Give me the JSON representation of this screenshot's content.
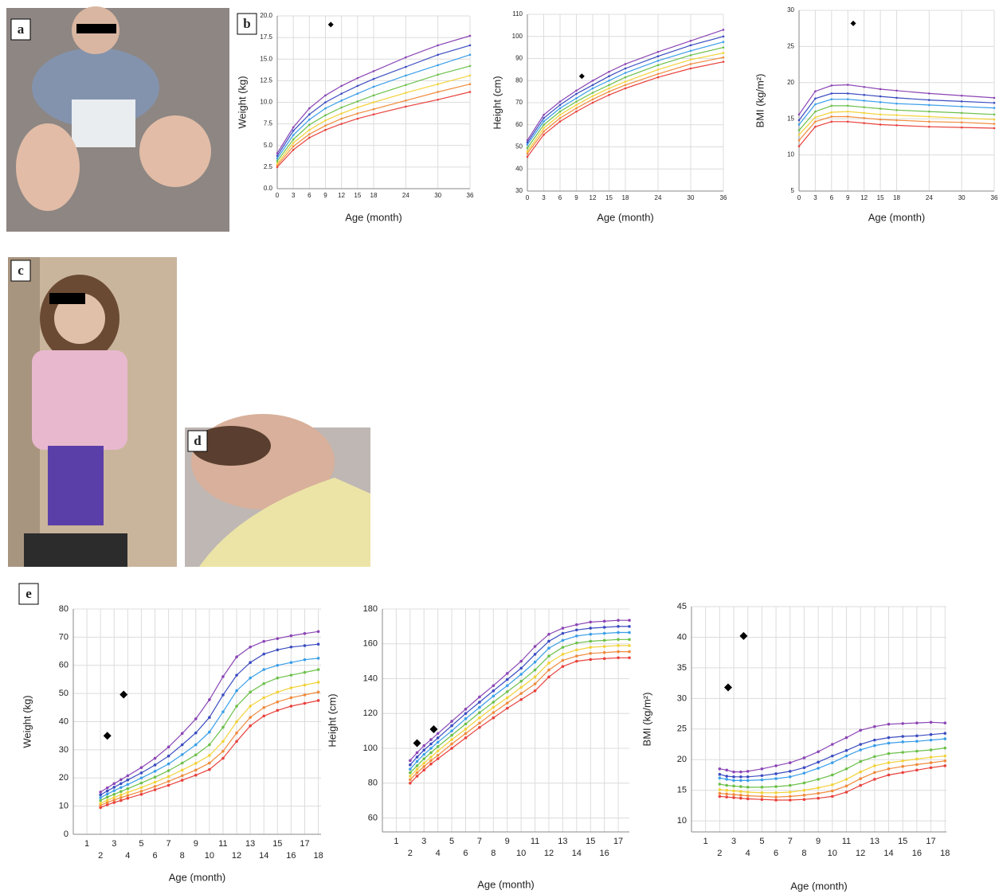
{
  "panel_labels": [
    "a",
    "b",
    "c",
    "d",
    "e"
  ],
  "chart_data": [
    {
      "type": "line",
      "y_label": "Weight (kg)",
      "x_label": "Age (month)",
      "grid": true,
      "x": [
        0,
        3,
        6,
        9,
        12,
        15,
        18,
        24,
        30,
        36
      ],
      "xlim": [
        0,
        36
      ],
      "xticks": [
        0,
        3,
        6,
        9,
        12,
        15,
        18,
        24,
        30,
        36
      ],
      "ylim": [
        0,
        20
      ],
      "yticks": [
        {
          "value": 0,
          "label": "0.0"
        },
        2.5,
        {
          "value": 5,
          "label": "5.0"
        },
        7.5,
        {
          "value": 10,
          "label": "10.0"
        },
        12.5,
        {
          "value": 15,
          "label": "15.0"
        },
        17.5,
        {
          "value": 20,
          "label": "20.0"
        }
      ],
      "series": [
        {
          "color": "#e8413c",
          "values": [
            2.5,
            4.5,
            5.9,
            6.8,
            7.5,
            8.1,
            8.6,
            9.5,
            10.3,
            11.2
          ]
        },
        {
          "color": "#f08a3c",
          "values": [
            2.7,
            4.9,
            6.3,
            7.3,
            8.1,
            8.7,
            9.2,
            10.2,
            11.2,
            12.1
          ]
        },
        {
          "color": "#f2d23a",
          "values": [
            2.9,
            5.3,
            6.8,
            7.9,
            8.7,
            9.4,
            10.0,
            11.1,
            12.1,
            13.1
          ]
        },
        {
          "color": "#6cc04a",
          "values": [
            3.2,
            5.7,
            7.4,
            8.5,
            9.4,
            10.1,
            10.8,
            12.0,
            13.2,
            14.2
          ]
        },
        {
          "color": "#3a9ee8",
          "values": [
            3.5,
            6.2,
            8.0,
            9.3,
            10.2,
            11.0,
            11.8,
            13.1,
            14.3,
            15.5
          ]
        },
        {
          "color": "#3b4cc0",
          "values": [
            3.8,
            6.7,
            8.6,
            10.0,
            11.0,
            11.9,
            12.7,
            14.1,
            15.5,
            16.6
          ]
        },
        {
          "color": "#8b45b5",
          "values": [
            4.1,
            7.1,
            9.3,
            10.8,
            11.9,
            12.8,
            13.6,
            15.2,
            16.6,
            17.7
          ]
        }
      ],
      "points": {
        "color": "#000000",
        "x": [
          10
        ],
        "values": [
          19
        ]
      }
    },
    {
      "type": "line",
      "y_label": "Height (cm)",
      "x_label": "Age (month)",
      "grid": true,
      "x": [
        0,
        3,
        6,
        9,
        12,
        15,
        18,
        24,
        30,
        36
      ],
      "xlim": [
        0,
        36
      ],
      "xticks": [
        0,
        3,
        6,
        9,
        12,
        15,
        18,
        24,
        30,
        36
      ],
      "ylim": [
        30,
        110
      ],
      "yticks": [
        30,
        40,
        50,
        60,
        70,
        80,
        90,
        100,
        110
      ],
      "series": [
        {
          "color": "#e8413c",
          "values": [
            45.5,
            55.5,
            61.5,
            66,
            70,
            73.5,
            76.5,
            81.5,
            85.5,
            88.5
          ]
        },
        {
          "color": "#f08a3c",
          "values": [
            47,
            57,
            63,
            67.5,
            71.5,
            75,
            78,
            83,
            87.5,
            90.5
          ]
        },
        {
          "color": "#f2d23a",
          "values": [
            48,
            58.5,
            64.5,
            69,
            73,
            76.5,
            79.5,
            85,
            89.5,
            92.5
          ]
        },
        {
          "color": "#6cc04a",
          "values": [
            49.5,
            60,
            66,
            70.5,
            74.5,
            78,
            81.5,
            87,
            91.5,
            95
          ]
        },
        {
          "color": "#3a9ee8",
          "values": [
            51,
            61.5,
            67.5,
            72,
            76.5,
            80,
            83.5,
            89,
            93.5,
            97.5
          ]
        },
        {
          "color": "#3b4cc0",
          "values": [
            52,
            63,
            69,
            74,
            78,
            82,
            85.5,
            91,
            96,
            100
          ]
        },
        {
          "color": "#8b45b5",
          "values": [
            53,
            64.5,
            70.5,
            75.5,
            80,
            84,
            87.5,
            93,
            98,
            103
          ]
        }
      ],
      "points": {
        "color": "#000000",
        "x": [
          10
        ],
        "values": [
          82
        ]
      }
    },
    {
      "type": "line",
      "y_label": "BMI (kg/m²)",
      "x_label": "Age (month)",
      "grid": true,
      "x": [
        0,
        3,
        6,
        9,
        12,
        15,
        18,
        24,
        30,
        36
      ],
      "xlim": [
        0,
        36
      ],
      "xticks": [
        0,
        3,
        6,
        9,
        12,
        15,
        18,
        24,
        30,
        36
      ],
      "ylim": [
        5,
        30
      ],
      "yticks": [
        5,
        10,
        15,
        20,
        25,
        30
      ],
      "series": [
        {
          "color": "#e8413c",
          "values": [
            11.2,
            13.9,
            14.6,
            14.6,
            14.4,
            14.2,
            14.1,
            13.9,
            13.8,
            13.7
          ]
        },
        {
          "color": "#f08a3c",
          "values": [
            12,
            14.6,
            15.3,
            15.3,
            15.1,
            14.9,
            14.8,
            14.6,
            14.5,
            14.3
          ]
        },
        {
          "color": "#f2d23a",
          "values": [
            12.8,
            15.2,
            15.9,
            16,
            15.8,
            15.6,
            15.5,
            15.3,
            15.1,
            14.9
          ]
        },
        {
          "color": "#6cc04a",
          "values": [
            13.4,
            16.0,
            16.8,
            16.8,
            16.6,
            16.4,
            16.2,
            16.0,
            15.8,
            15.6
          ]
        },
        {
          "color": "#3a9ee8",
          "values": [
            14.2,
            17.0,
            17.7,
            17.7,
            17.5,
            17.3,
            17.1,
            16.9,
            16.7,
            16.5
          ]
        },
        {
          "color": "#3b4cc0",
          "values": [
            14.8,
            17.8,
            18.5,
            18.5,
            18.3,
            18.1,
            17.9,
            17.6,
            17.4,
            17.2
          ]
        },
        {
          "color": "#8b45b5",
          "values": [
            15.6,
            18.8,
            19.6,
            19.7,
            19.4,
            19.1,
            18.9,
            18.5,
            18.2,
            17.9
          ]
        }
      ],
      "points": {
        "color": "#000000",
        "x": [
          10
        ],
        "values": [
          28.2
        ]
      }
    },
    {
      "type": "line",
      "y_label": "Weight (kg)",
      "x_label": "Age (month)",
      "grid": true,
      "x": [
        2,
        2.5,
        3,
        3.5,
        4,
        5,
        6,
        7,
        8,
        9,
        10,
        11,
        12,
        13,
        14,
        15,
        16,
        17,
        18
      ],
      "xlim": [
        0,
        18.2
      ],
      "xticks": [
        1,
        2,
        3,
        4,
        5,
        6,
        7,
        8,
        9,
        10,
        11,
        12,
        13,
        14,
        15,
        16,
        17,
        18
      ],
      "ylim": [
        0,
        80
      ],
      "yticks": [
        0,
        10,
        20,
        30,
        40,
        50,
        60,
        70,
        80
      ],
      "series": [
        {
          "color": "#e8413c",
          "values": [
            9.5,
            10.5,
            11.3,
            12,
            12.8,
            14.2,
            15.8,
            17.4,
            19.2,
            21,
            23,
            27,
            33,
            38.5,
            42,
            44,
            45.5,
            46.5,
            47.5
          ]
        },
        {
          "color": "#f08a3c",
          "values": [
            10.3,
            11.3,
            12.2,
            13,
            13.8,
            15.3,
            17,
            18.8,
            20.8,
            22.8,
            25.3,
            29.5,
            36,
            41.5,
            45,
            47,
            48.5,
            49.5,
            50.5
          ]
        },
        {
          "color": "#f2d23a",
          "values": [
            11,
            12.1,
            13.1,
            14,
            14.9,
            16.6,
            18.5,
            20.5,
            22.8,
            25.2,
            28,
            33,
            40,
            45.5,
            48.5,
            50.5,
            52,
            53,
            54
          ]
        },
        {
          "color": "#6cc04a",
          "values": [
            12,
            13.2,
            14.2,
            15.2,
            16.2,
            18.2,
            20.3,
            22.6,
            25.3,
            28.2,
            31.8,
            38,
            45.5,
            50.5,
            53.5,
            55.5,
            56.5,
            57.5,
            58.5
          ]
        },
        {
          "color": "#3a9ee8",
          "values": [
            13,
            14.3,
            15.5,
            16.6,
            17.7,
            20,
            22.4,
            25,
            28.3,
            31.8,
            36.3,
            43.5,
            51,
            55.5,
            58.5,
            60,
            61,
            62,
            62.5
          ]
        },
        {
          "color": "#3b4cc0",
          "values": [
            14,
            15.4,
            16.7,
            18,
            19.3,
            21.8,
            24.6,
            27.8,
            31.8,
            36,
            41.5,
            49.5,
            56.5,
            61,
            64,
            65.5,
            66.5,
            67,
            67.5
          ]
        },
        {
          "color": "#8b45b5",
          "values": [
            15,
            16.5,
            18,
            19.4,
            20.8,
            23.7,
            27,
            31,
            35.8,
            41,
            47.8,
            56,
            63,
            66.5,
            68.5,
            69.5,
            70.5,
            71.3,
            72
          ]
        }
      ],
      "points": {
        "color": "#000000",
        "x": [
          2.5,
          3.7
        ],
        "values": [
          35,
          49.6
        ]
      }
    },
    {
      "type": "line",
      "y_label": "Height (cm)",
      "x_label": "Age (month)",
      "grid": true,
      "x": [
        2,
        2.5,
        3,
        3.5,
        4,
        5,
        6,
        7,
        8,
        9,
        10,
        11,
        12,
        13,
        14,
        15,
        16,
        17,
        17.8
      ],
      "xlim": [
        0,
        17.8
      ],
      "xticks": [
        1,
        2,
        3,
        4,
        5,
        6,
        7,
        8,
        9,
        10,
        11,
        12,
        13,
        14,
        15,
        16,
        17
      ],
      "ylim": [
        52,
        180
      ],
      "yticks": [
        60,
        80,
        100,
        120,
        140,
        160,
        180
      ],
      "series": [
        {
          "color": "#e8413c",
          "values": [
            80,
            84,
            87.5,
            91,
            94,
            100,
            106,
            112,
            117.5,
            123,
            128,
            133,
            141,
            147,
            150,
            151,
            151.5,
            152,
            152
          ]
        },
        {
          "color": "#f08a3c",
          "values": [
            82,
            86,
            89.5,
            93,
            96,
            102.5,
            108.5,
            114.5,
            120.5,
            126,
            131.5,
            137,
            145,
            150.5,
            153,
            154.5,
            155,
            155.5,
            155.5
          ]
        },
        {
          "color": "#f2d23a",
          "values": [
            84,
            88,
            91.5,
            95,
            98.5,
            105,
            111,
            117.5,
            123.5,
            129,
            135,
            141,
            149,
            154,
            156.5,
            158,
            158.5,
            159,
            159
          ]
        },
        {
          "color": "#6cc04a",
          "values": [
            86,
            90,
            94,
            97.5,
            101,
            107.5,
            114,
            120.5,
            126.5,
            132.5,
            138.5,
            145,
            153,
            158,
            160.5,
            161.5,
            162,
            162.5,
            162.5
          ]
        },
        {
          "color": "#3a9ee8",
          "values": [
            88,
            92.5,
            96.5,
            100,
            103.5,
            110,
            117,
            123.5,
            130,
            136,
            142.5,
            149.5,
            157.5,
            162,
            164.5,
            165.5,
            166,
            166.5,
            166.5
          ]
        },
        {
          "color": "#3b4cc0",
          "values": [
            90.5,
            95,
            99,
            102.5,
            106,
            113,
            120,
            126.5,
            133,
            139.5,
            146,
            154,
            161.5,
            166,
            168,
            169,
            169.5,
            170,
            170
          ]
        },
        {
          "color": "#8b45b5",
          "values": [
            93,
            97.5,
            101.5,
            105,
            108.5,
            115.5,
            122.5,
            129.5,
            136,
            143,
            150,
            158.5,
            165.5,
            169,
            171,
            172.5,
            173,
            173.5,
            173.5
          ]
        }
      ],
      "points": {
        "color": "#000000",
        "x": [
          2.5,
          3.7
        ],
        "values": [
          103,
          111
        ]
      }
    },
    {
      "type": "line",
      "y_label": "BMI (kg/m²)",
      "x_label": "Age (month)",
      "grid": true,
      "x": [
        2,
        2.5,
        3,
        3.5,
        4,
        5,
        6,
        7,
        8,
        9,
        10,
        11,
        12,
        13,
        14,
        15,
        16,
        17,
        18
      ],
      "xlim": [
        0,
        18.1
      ],
      "xticks": [
        1,
        2,
        3,
        4,
        5,
        6,
        7,
        8,
        9,
        10,
        11,
        12,
        13,
        14,
        15,
        16,
        17,
        18
      ],
      "ylim": [
        8.2,
        45
      ],
      "yticks": [
        10,
        15,
        20,
        25,
        30,
        35,
        40,
        45
      ],
      "series": [
        {
          "color": "#e8413c",
          "values": [
            14,
            13.9,
            13.8,
            13.7,
            13.6,
            13.5,
            13.4,
            13.4,
            13.5,
            13.7,
            14,
            14.7,
            15.8,
            16.8,
            17.5,
            17.9,
            18.3,
            18.7,
            19
          ]
        },
        {
          "color": "#f08a3c",
          "values": [
            14.5,
            14.4,
            14.3,
            14.2,
            14.1,
            14,
            13.9,
            14,
            14.2,
            14.5,
            14.9,
            15.7,
            16.9,
            17.9,
            18.5,
            18.9,
            19.2,
            19.5,
            19.8
          ]
        },
        {
          "color": "#f2d23a",
          "values": [
            15.1,
            15,
            14.9,
            14.8,
            14.7,
            14.6,
            14.6,
            14.7,
            15,
            15.4,
            15.9,
            16.8,
            18,
            19,
            19.5,
            19.8,
            20.1,
            20.4,
            20.6
          ]
        },
        {
          "color": "#6cc04a",
          "values": [
            16,
            15.8,
            15.7,
            15.6,
            15.5,
            15.5,
            15.6,
            15.8,
            16.2,
            16.8,
            17.5,
            18.5,
            19.7,
            20.5,
            21,
            21.2,
            21.4,
            21.6,
            21.9
          ]
        },
        {
          "color": "#3a9ee8",
          "values": [
            17,
            16.8,
            16.6,
            16.6,
            16.6,
            16.7,
            16.9,
            17.2,
            17.8,
            18.6,
            19.5,
            20.6,
            21.6,
            22.3,
            22.7,
            22.9,
            23,
            23.2,
            23.4
          ]
        },
        {
          "color": "#3b4cc0",
          "values": [
            17.6,
            17.3,
            17.2,
            17.2,
            17.2,
            17.4,
            17.7,
            18.1,
            18.7,
            19.6,
            20.6,
            21.5,
            22.5,
            23.2,
            23.6,
            23.8,
            23.9,
            24.1,
            24.3
          ]
        },
        {
          "color": "#8b45b5",
          "values": [
            18.5,
            18.3,
            18,
            18,
            18.1,
            18.5,
            19,
            19.5,
            20.3,
            21.3,
            22.5,
            23.6,
            24.8,
            25.4,
            25.8,
            25.9,
            26,
            26.1,
            26
          ]
        }
      ],
      "points": {
        "color": "#000000",
        "x": [
          2.6,
          3.7
        ],
        "values": [
          31.8,
          40.2
        ]
      }
    }
  ]
}
